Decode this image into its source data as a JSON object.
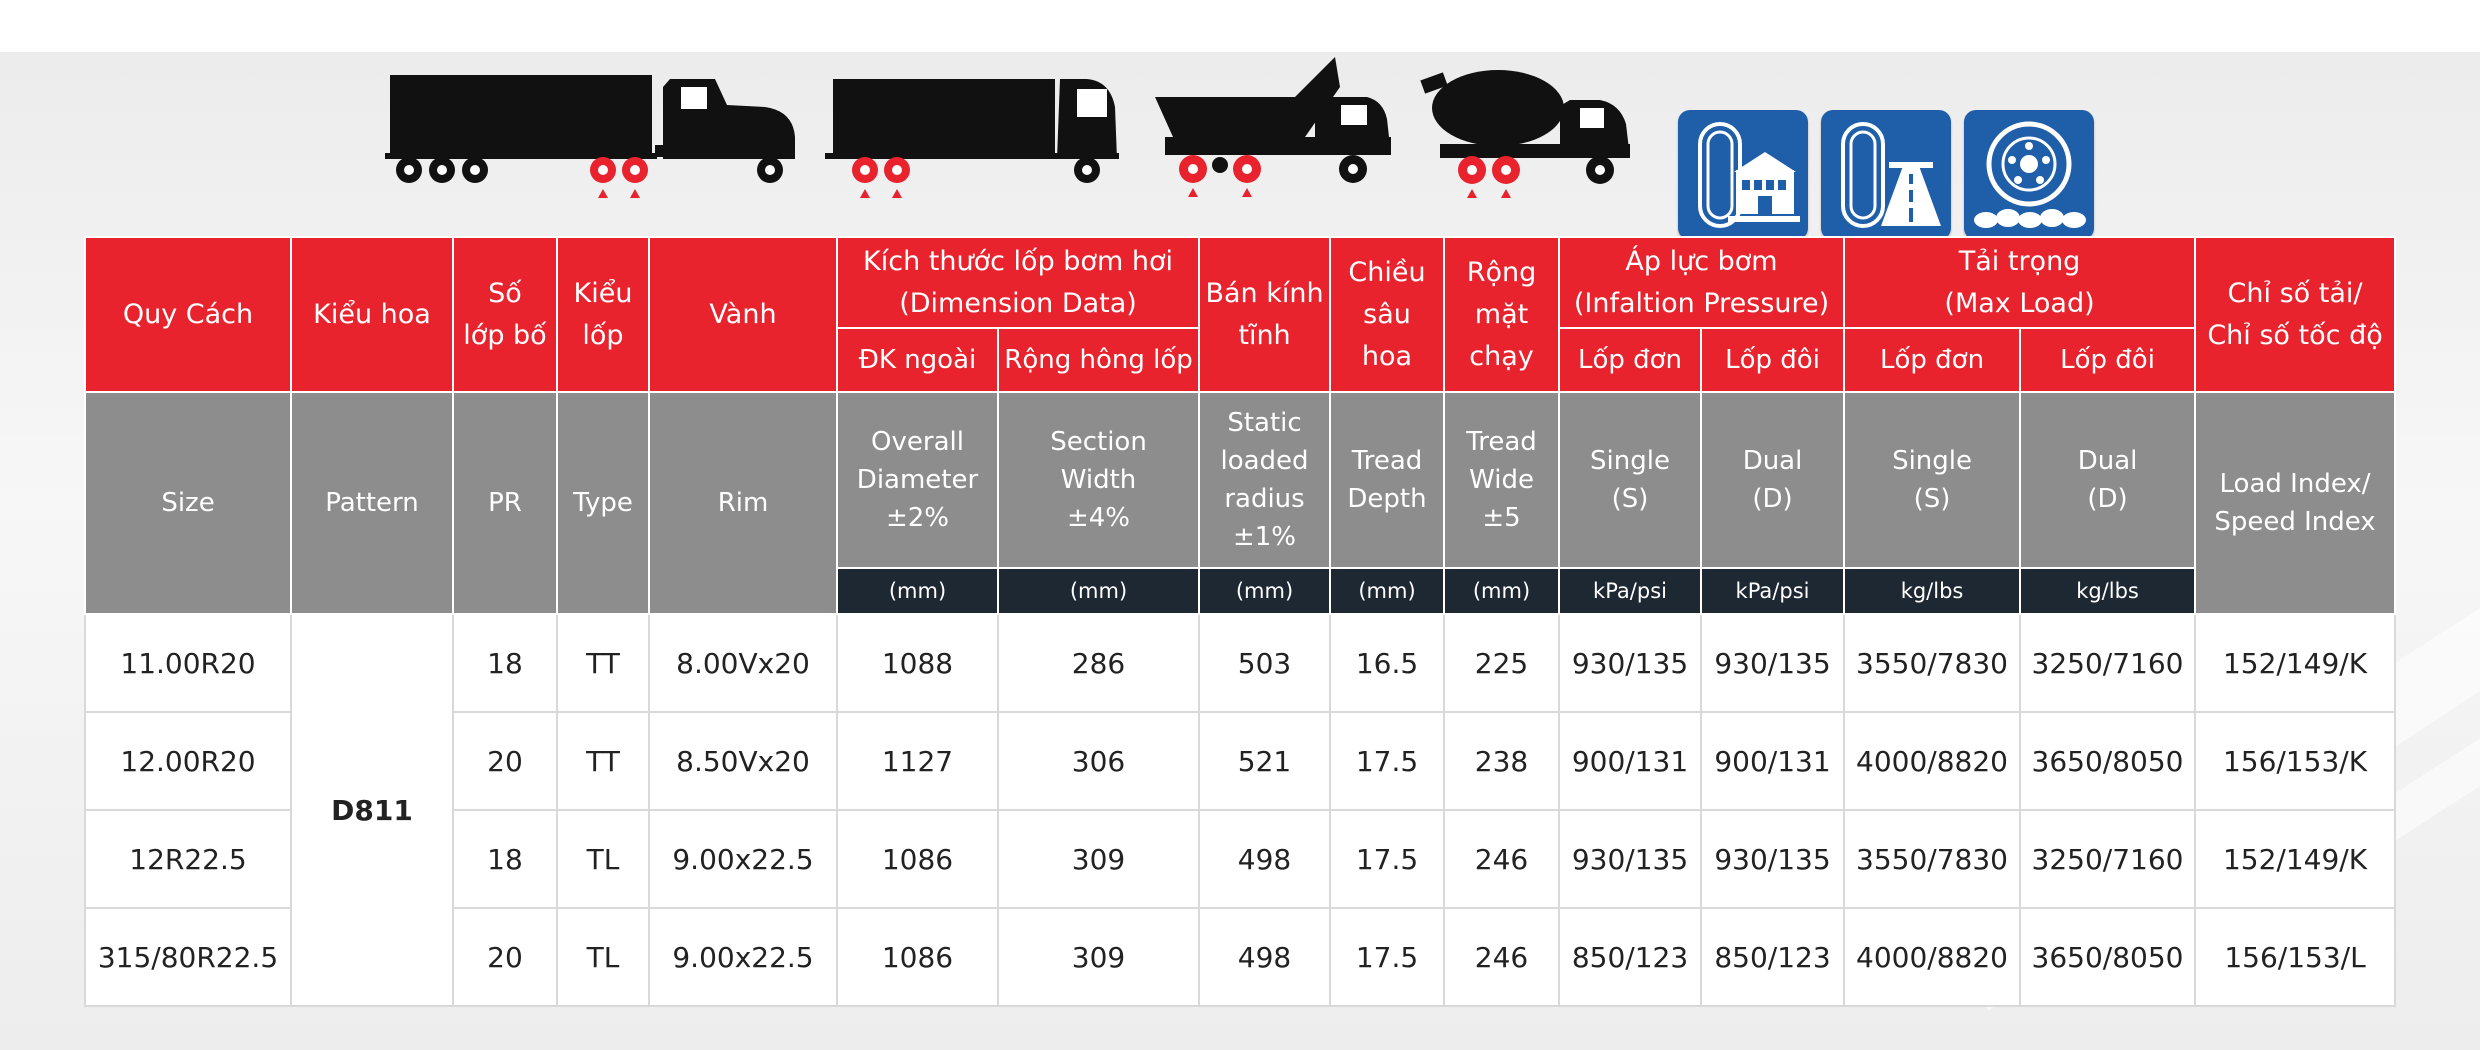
{
  "colors": {
    "red": "#e8232d",
    "grey": "#8d8d8d",
    "navy": "#1d2833",
    "blue": "#1f5ea9"
  },
  "vehicle_icons": [
    "semi-truck-icon",
    "box-truck-icon",
    "dump-truck-icon",
    "mixer-truck-icon"
  ],
  "application_badges": [
    "urban-tire-icon",
    "highway-tire-icon",
    "offroad-tire-icon"
  ],
  "header_vn": {
    "size": "Quy Cách",
    "pattern": "Kiểu hoa",
    "pr_line1": "Số",
    "pr_line2": "lớp bố",
    "type_line1": "Kiểu",
    "type_line2": "lốp",
    "rim": "Vành",
    "dimension_line1": "Kích thước lốp bơm hơi",
    "dimension_line2": "(Dimension Data)",
    "radius_line1": "Bán kính",
    "radius_line2": "tĩnh",
    "depth_line1": "Chiều",
    "depth_line2": "sâu",
    "depth_line3": "hoa",
    "wide_line1": "Rộng",
    "wide_line2": "mặt",
    "wide_line3": "chạy",
    "pressure_line1": "Áp lực bơm",
    "pressure_line2": "(Infaltion Pressure)",
    "load_line1": "Tải trọng",
    "load_line2": "(Max Load)",
    "index_line1": "Chỉ số tải/",
    "index_line2": "Chỉ số tốc độ",
    "overall_dia": "ĐK ngoài",
    "section_width": "Rộng hông lốp",
    "pressure_single": "Lốp đơn",
    "pressure_dual": "Lốp đôi",
    "load_single": "Lốp đơn",
    "load_dual": "Lốp đôi"
  },
  "header_en": {
    "size": "Size",
    "pattern": "Pattern",
    "pr": "PR",
    "type": "Type",
    "rim": "Rim",
    "overall_line1": "Overall",
    "overall_line2": "Diameter",
    "overall_line3": "±2%",
    "section_line1": "Section",
    "section_line2": "Width",
    "section_line3": "±4%",
    "static_line1": "Static",
    "static_line2": "loaded",
    "static_line3": "radius",
    "static_line4": "±1%",
    "tread_line1": "Tread",
    "tread_line2": "Depth",
    "tw_line1": "Tread",
    "tw_line2": "Wide",
    "tw_line3": "±5",
    "psingle_line1": "Single",
    "psingle_line2": "(S)",
    "pdual_line1": "Dual",
    "pdual_line2": "(D)",
    "lsingle_line1": "Single",
    "lsingle_line2": "(S)",
    "ldual_line1": "Dual",
    "ldual_line2": "(D)",
    "index_line1": "Load Index/",
    "index_line2": "Speed Index"
  },
  "units": [
    "(mm)",
    "(mm)",
    "(mm)",
    "(mm)",
    "(mm)",
    "kPa/psi",
    "kPa/psi",
    "kg/lbs",
    "kg/lbs"
  ],
  "pattern": "D811",
  "rows": [
    {
      "size": "11.00R20",
      "pr": "18",
      "type": "TT",
      "rim": "8.00Vx20",
      "od": "1088",
      "sw": "286",
      "slr": "503",
      "depth": "16.5",
      "wide": "225",
      "ps": "930/135",
      "pd": "930/135",
      "ls": "3550/7830",
      "ld": "3250/7160",
      "index": "152/149/K"
    },
    {
      "size": "12.00R20",
      "pr": "20",
      "type": "TT",
      "rim": "8.50Vx20",
      "od": "1127",
      "sw": "306",
      "slr": "521",
      "depth": "17.5",
      "wide": "238",
      "ps": "900/131",
      "pd": "900/131",
      "ls": "4000/8820",
      "ld": "3650/8050",
      "index": "156/153/K"
    },
    {
      "size": "12R22.5",
      "pr": "18",
      "type": "TL",
      "rim": "9.00x22.5",
      "od": "1086",
      "sw": "309",
      "slr": "498",
      "depth": "17.5",
      "wide": "246",
      "ps": "930/135",
      "pd": "930/135",
      "ls": "3550/7830",
      "ld": "3250/7160",
      "index": "152/149/K"
    },
    {
      "size": "315/80R22.5",
      "pr": "20",
      "type": "TL",
      "rim": "9.00x22.5",
      "od": "1086",
      "sw": "309",
      "slr": "498",
      "depth": "17.5",
      "wide": "246",
      "ps": "850/123",
      "pd": "850/123",
      "ls": "4000/8820",
      "ld": "3650/8050",
      "index": "156/153/L"
    }
  ]
}
